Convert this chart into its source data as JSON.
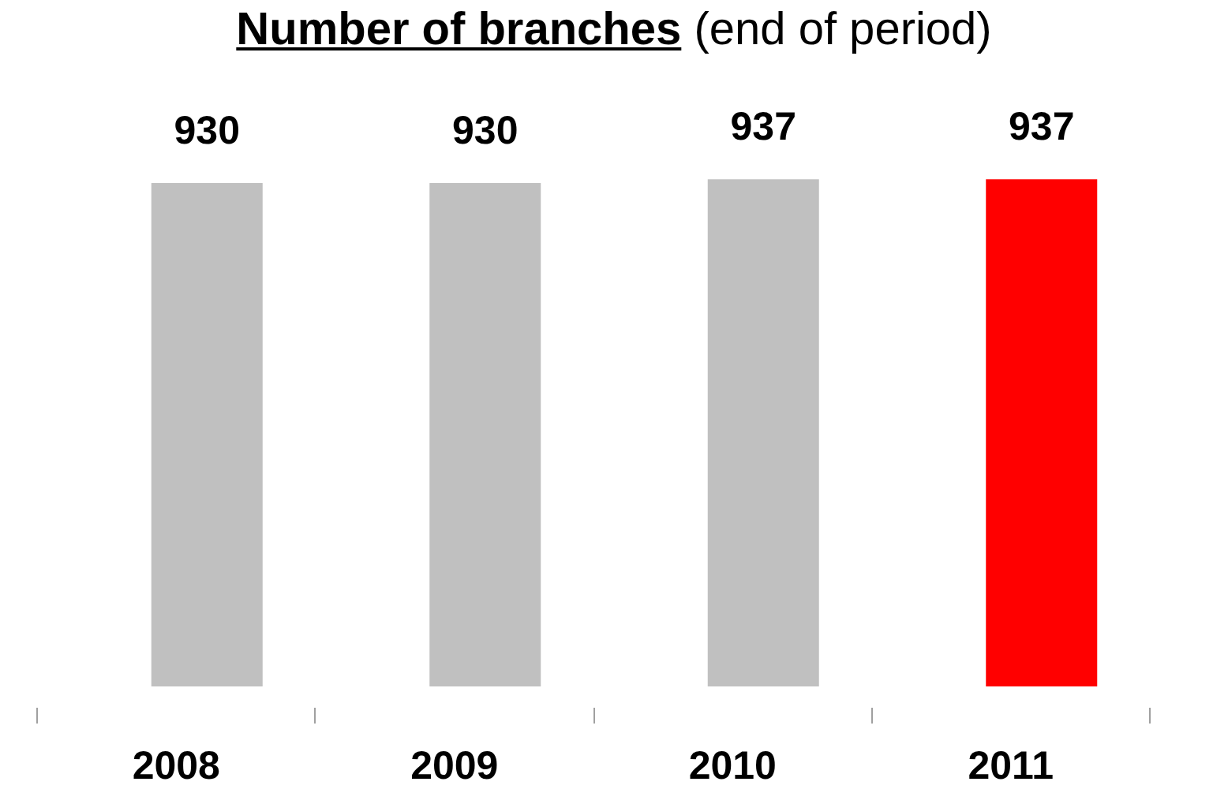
{
  "chart_data": {
    "type": "bar",
    "title": "Number of branches",
    "subtitle": "(end of period)",
    "categories": [
      "2008",
      "2009",
      "2010",
      "2011"
    ],
    "values": [
      930,
      930,
      937,
      937
    ],
    "colors": [
      "#c0c0c0",
      "#c0c0c0",
      "#c0c0c0",
      "#ff0000"
    ],
    "data_labels": true,
    "tick_labels": "x"
  }
}
